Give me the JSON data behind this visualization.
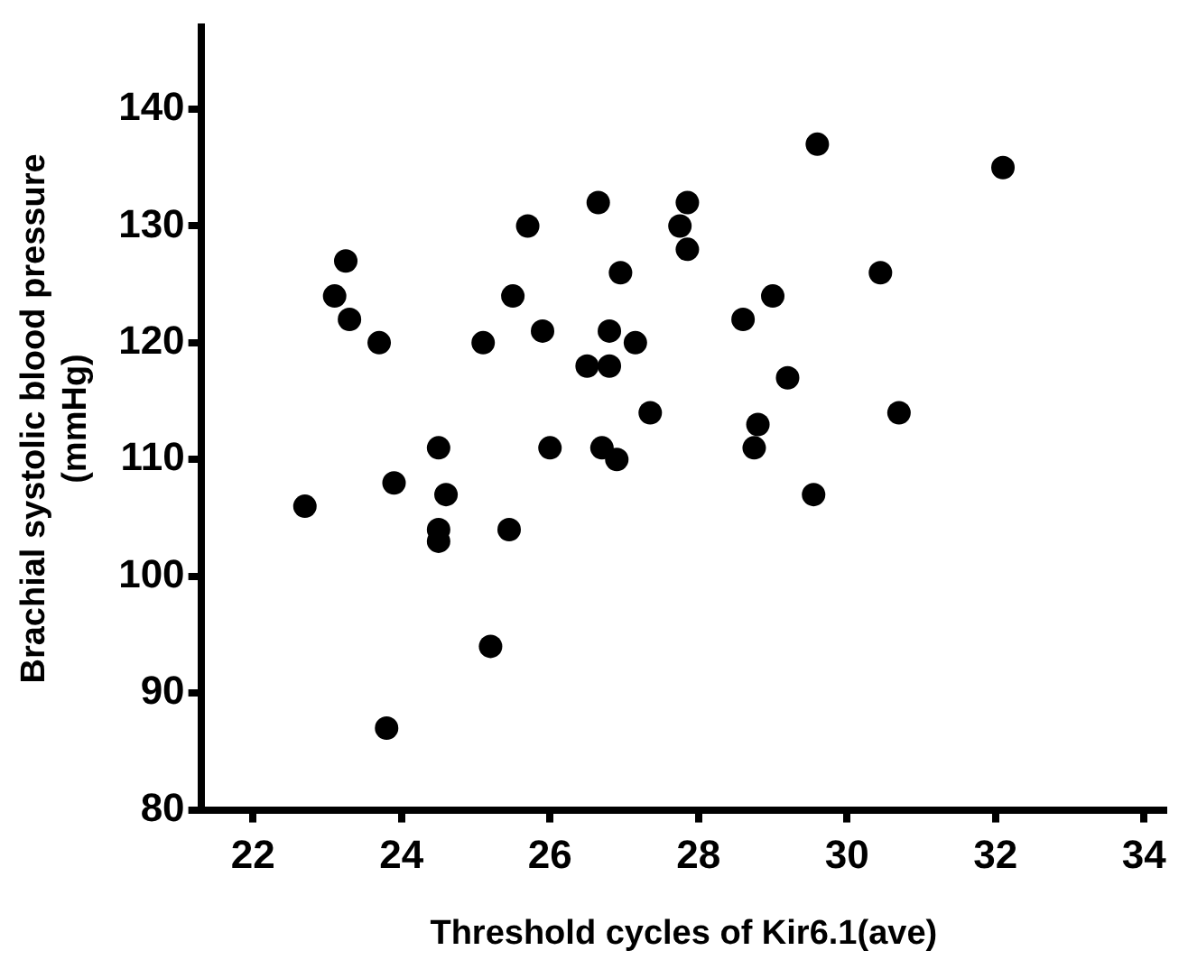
{
  "chart_data": {
    "type": "scatter",
    "xlabel": "Threshold cycles of Kir6.1(ave)",
    "ylabel": "Brachial systolic blood pressure\n(mmHg)",
    "x": [
      29.6,
      32.1,
      26.65,
      27.85,
      25.7,
      27.75,
      27.85,
      23.25,
      26.95,
      30.45,
      23.1,
      25.5,
      29.0,
      23.3,
      28.6,
      23.7,
      25.1,
      25.9,
      26.8,
      27.15,
      26.5,
      26.8,
      29.2,
      27.35,
      30.7,
      28.8,
      24.5,
      26.0,
      26.7,
      26.9,
      28.75,
      23.9,
      24.6,
      29.55,
      22.7,
      24.5,
      25.45,
      24.5,
      25.2,
      23.8
    ],
    "series": [
      {
        "color": "#000000",
        "values": [
          137,
          135,
          132,
          132,
          130,
          130,
          128,
          127,
          126,
          126,
          124,
          124,
          124,
          122,
          122,
          120,
          120,
          121,
          121,
          120,
          118,
          118,
          117,
          114,
          114,
          113,
          111,
          111,
          111,
          110,
          111,
          108,
          107,
          107,
          106,
          104,
          104,
          103,
          94,
          87
        ]
      }
    ],
    "xlim": [
      21.3,
      34.3
    ],
    "ylim": [
      80,
      147
    ],
    "xticks": [
      22,
      24,
      26,
      28,
      30,
      32,
      34
    ],
    "yticks": [
      80,
      90,
      100,
      110,
      120,
      130,
      140
    ],
    "grid": false,
    "legend": false,
    "marker": "circle"
  }
}
